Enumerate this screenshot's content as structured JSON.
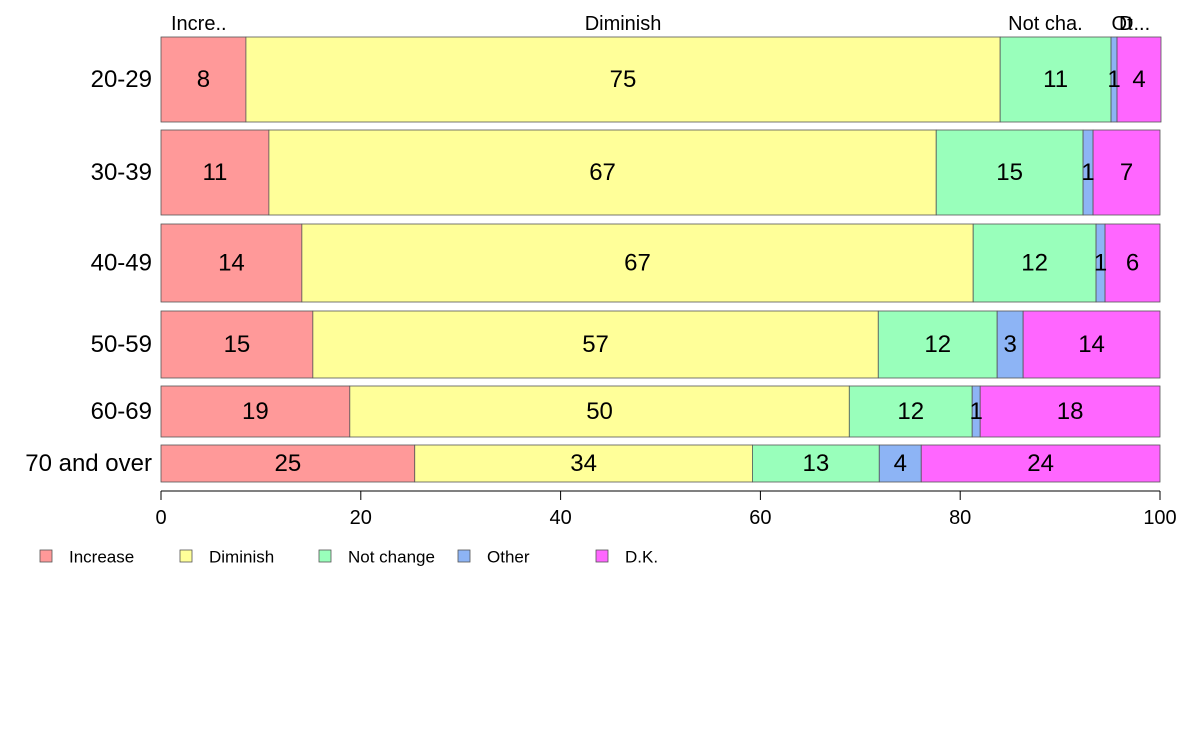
{
  "chart_data": {
    "type": "bar",
    "orientation": "horizontal",
    "stacked": true,
    "categories": [
      "20-29",
      "30-39",
      "40-49",
      "50-59",
      "60-69",
      "70 and over"
    ],
    "series": [
      {
        "name": "Increase",
        "color": "#ff9999",
        "values": [
          8.5,
          10.8,
          14.1,
          15.2,
          18.9,
          25.4
        ],
        "labels": [
          "8",
          "11",
          "14",
          "15",
          "19",
          "25"
        ]
      },
      {
        "name": "Diminish",
        "color": "#ffff99",
        "values": [
          75.5,
          66.8,
          67.2,
          56.6,
          50.0,
          33.8
        ],
        "labels": [
          "75",
          "67",
          "67",
          "57",
          "50",
          "34"
        ]
      },
      {
        "name": "Not change",
        "color": "#99ffbb",
        "values": [
          11.1,
          14.7,
          12.3,
          11.9,
          12.3,
          12.7
        ],
        "labels": [
          "11",
          "15",
          "12",
          "12",
          "12",
          "13"
        ]
      },
      {
        "name": "Other",
        "color": "#8db4f5",
        "values": [
          0.6,
          1.0,
          0.9,
          2.6,
          0.8,
          4.2
        ],
        "labels": [
          "1",
          "1",
          "1",
          "3",
          "1",
          "4"
        ]
      },
      {
        "name": "D.K.",
        "color": "#ff66ff",
        "values": [
          4.4,
          6.7,
          5.5,
          13.7,
          18.0,
          23.9
        ],
        "labels": [
          "4",
          "7",
          "6",
          "14",
          "18",
          "24"
        ]
      }
    ],
    "top_labels": [
      "Incre..",
      "Diminish",
      "Not cha.",
      "Ot",
      "D..."
    ],
    "x_ticks": [
      "0",
      "20",
      "40",
      "60",
      "80",
      "100"
    ],
    "xlim": [
      0,
      100
    ],
    "grid": false,
    "legend_position": "bottom-left"
  }
}
